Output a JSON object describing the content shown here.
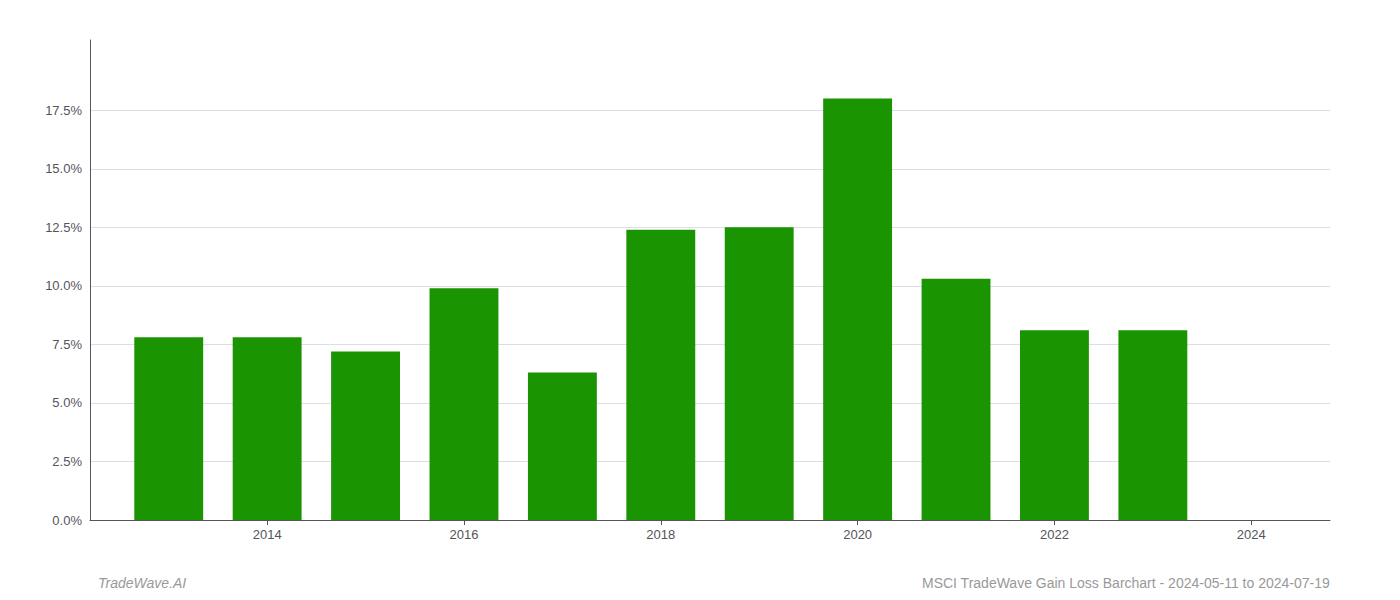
{
  "chart_data": {
    "type": "bar",
    "x": [
      2013,
      2014,
      2015,
      2016,
      2017,
      2018,
      2019,
      2020,
      2021,
      2022,
      2023
    ],
    "values": [
      0.078,
      0.078,
      0.072,
      0.099,
      0.063,
      0.124,
      0.125,
      0.18,
      0.103,
      0.081,
      0.081
    ],
    "color": "#1a9400",
    "xlim": [
      2012.2,
      2024.8
    ],
    "xticks": [
      2014,
      2016,
      2018,
      2020,
      2022,
      2024
    ],
    "ylim": [
      0,
      0.205
    ],
    "yticks": [
      {
        "value": 0.0,
        "label": "0.0%"
      },
      {
        "value": 0.025,
        "label": "2.5%"
      },
      {
        "value": 0.05,
        "label": "5.0%"
      },
      {
        "value": 0.075,
        "label": "7.5%"
      },
      {
        "value": 0.1,
        "label": "10.0%"
      },
      {
        "value": 0.125,
        "label": "12.5%"
      },
      {
        "value": 0.15,
        "label": "15.0%"
      },
      {
        "value": 0.175,
        "label": "17.5%"
      }
    ],
    "grid": true,
    "annotations": [
      "TradeWave.AI",
      "MSCI TradeWave Gain Loss Barchart - 2024-05-11 to 2024-07-19"
    ]
  }
}
